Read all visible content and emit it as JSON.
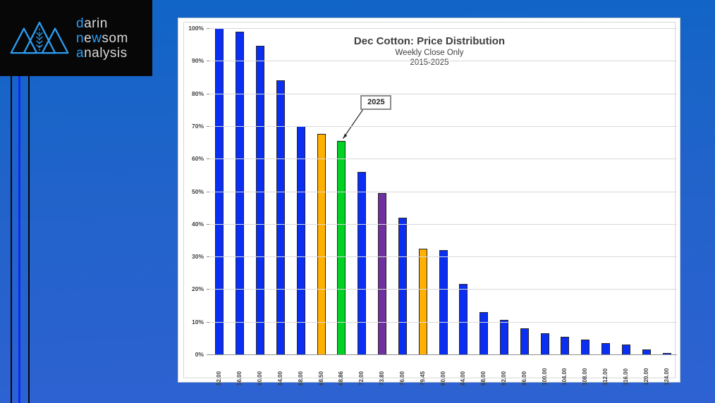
{
  "logo": {
    "lines": [
      {
        "segments": [
          {
            "text": "d",
            "accent": true
          },
          {
            "text": "arin",
            "accent": false
          }
        ]
      },
      {
        "segments": [
          {
            "text": "n",
            "accent": true
          },
          {
            "text": "e",
            "accent": false
          },
          {
            "text": "w",
            "accent": true
          },
          {
            "text": "som",
            "accent": false
          }
        ]
      },
      {
        "segments": [
          {
            "text": "a",
            "accent": true
          },
          {
            "text": "nalysis",
            "accent": false
          }
        ]
      }
    ],
    "accent_color": "#2b9df2",
    "plain_color": "#d9d9d9"
  },
  "chart_data": {
    "type": "bar",
    "title": "Dec Cotton: Price Distribution",
    "subtitle1": "Weekly Close Only",
    "subtitle2": "2015-2025",
    "categories": [
      "52.00",
      "56.00",
      "60.00",
      "64.00",
      "68.00",
      "68.50",
      "68.86",
      "72.00",
      "73.80",
      "76.00",
      "79.45",
      "80.00",
      "84.00",
      "88.00",
      "92.00",
      "96.00",
      "100.00",
      "104.00",
      "108.00",
      "112.00",
      "116.00",
      "120.00",
      "124.00"
    ],
    "values": [
      100,
      99,
      94.5,
      84,
      70,
      67.5,
      65.5,
      56,
      49.5,
      42,
      32.5,
      32,
      21.5,
      13,
      10.5,
      8,
      6.5,
      5.5,
      4.5,
      3.5,
      3,
      1.5,
      0.5
    ],
    "bar_color_keys": [
      "blue",
      "blue",
      "blue",
      "blue",
      "blue",
      "orange",
      "green",
      "blue",
      "purple",
      "blue",
      "orange",
      "blue",
      "blue",
      "blue",
      "blue",
      "blue",
      "blue",
      "blue",
      "blue",
      "blue",
      "blue",
      "blue",
      "blue"
    ],
    "palette": {
      "blue": "#0a2ff2",
      "orange": "#ffb000",
      "green": "#00d222",
      "purple": "#7030a0"
    },
    "xlabel": "",
    "ylabel": "",
    "ylim": [
      0,
      100
    ],
    "ytick_step": 10,
    "ytick_labels": [
      "0%",
      "10%",
      "20%",
      "30%",
      "40%",
      "50%",
      "60%",
      "70%",
      "80%",
      "90%",
      "100%"
    ],
    "grid": true,
    "legend": "none",
    "annotation": {
      "label": "2025",
      "target_category": "68.86",
      "target_index": 6
    }
  }
}
